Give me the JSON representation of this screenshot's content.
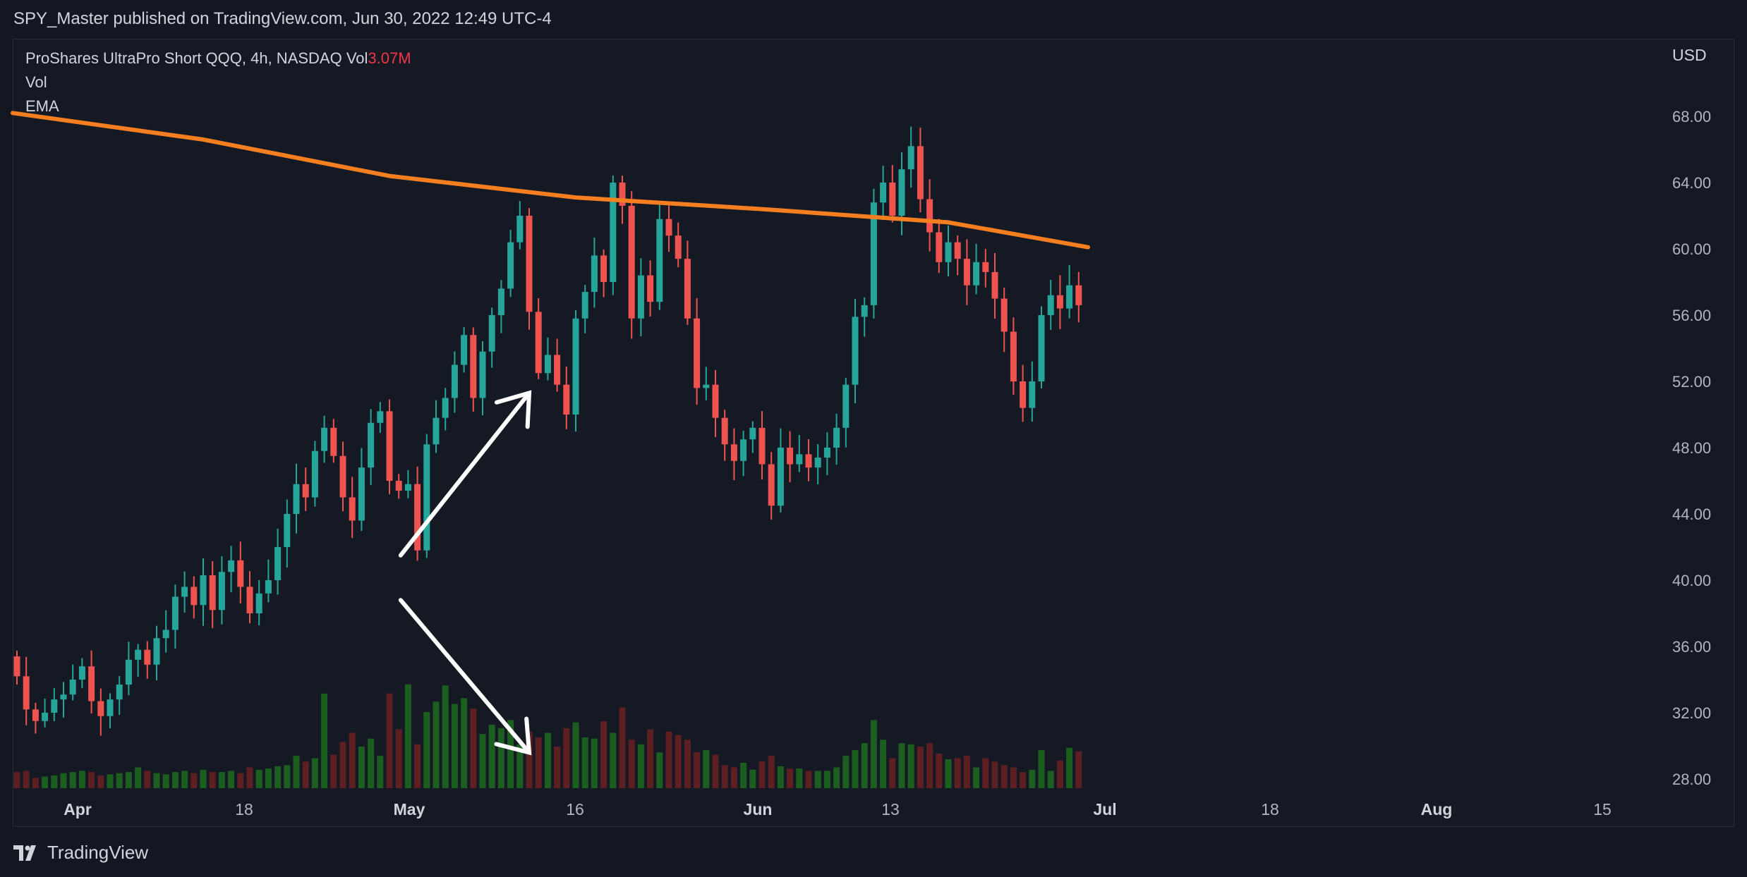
{
  "header": {
    "text": "SPY_Master published on TradingView.com, Jun 30, 2022 12:49 UTC-4"
  },
  "legend": {
    "symbol_line": "ProShares UltraPro Short QQQ, 4h, NASDAQ  Vol",
    "vol_value": "3.07M",
    "vol_label": "Vol",
    "ema_label": "EMA"
  },
  "currency": "USD",
  "footer": {
    "brand": "TradingView"
  },
  "colors": {
    "up": "#26a69a",
    "down": "#ef5350",
    "ema": "#f57f20",
    "vol_up": "#1b5e20",
    "vol_down": "#5d1f22",
    "annotation": "#ffffff"
  },
  "chart_data": {
    "type": "candlestick",
    "ylim": [
      27,
      70
    ],
    "y_ticks": [
      "28.00",
      "32.00",
      "36.00",
      "40.00",
      "44.00",
      "48.00",
      "52.00",
      "56.00",
      "60.00",
      "64.00",
      "68.00"
    ],
    "x_ticks": [
      {
        "label": "Apr",
        "major": true
      },
      {
        "label": "18",
        "major": false
      },
      {
        "label": "May",
        "major": true
      },
      {
        "label": "16",
        "major": false
      },
      {
        "label": "Jun",
        "major": true
      },
      {
        "label": "13",
        "major": false
      },
      {
        "label": "Jul",
        "major": true
      },
      {
        "label": "18",
        "major": false
      },
      {
        "label": "Aug",
        "major": true
      },
      {
        "label": "15",
        "major": false
      }
    ],
    "candle_closes": [
      34.2,
      32.2,
      31.5,
      32.0,
      32.8,
      33.1,
      34.0,
      34.8,
      32.7,
      31.8,
      32.8,
      33.7,
      35.2,
      35.8,
      34.9,
      36.5,
      37.0,
      39.0,
      39.6,
      38.5,
      40.3,
      38.2,
      40.5,
      41.2,
      39.6,
      38.0,
      39.2,
      40.0,
      42.0,
      44.0,
      45.8,
      45.0,
      47.8,
      49.2,
      47.5,
      45.0,
      43.6,
      46.8,
      49.5,
      50.2,
      46.0,
      45.4,
      45.8,
      41.8,
      48.2,
      49.8,
      51.0,
      53.0,
      54.8,
      51.0,
      53.8,
      56.0,
      57.6,
      60.4,
      62.0,
      56.2,
      52.5,
      53.6,
      51.8,
      50.0,
      55.8,
      57.4,
      59.6,
      58.0,
      64.0,
      62.6,
      55.8,
      58.4,
      56.8,
      61.8,
      60.8,
      59.4,
      55.8,
      51.6,
      51.8,
      49.8,
      48.2,
      47.2,
      48.5,
      49.2,
      47.0,
      44.5,
      48.0,
      47.0,
      47.6,
      46.8,
      47.4,
      48.0,
      49.2,
      51.8,
      55.9,
      56.6,
      62.8,
      64.0,
      62.0,
      64.8,
      66.2,
      63.0,
      61.0,
      59.2,
      60.4,
      59.4,
      57.8,
      59.2,
      58.6,
      57.0,
      55.0,
      52.0,
      50.4,
      52.0,
      56.0,
      57.2,
      56.4,
      57.8,
      56.6
    ],
    "ema": [
      [
        0,
        68.2
      ],
      [
        20,
        66.6
      ],
      [
        40,
        64.4
      ],
      [
        60,
        63.1
      ],
      [
        80,
        62.4
      ],
      [
        100,
        61.6
      ],
      [
        115,
        60.1
      ]
    ],
    "volume": [
      14,
      15,
      9,
      10,
      11,
      13,
      14,
      15,
      14,
      11,
      12,
      13,
      14,
      18,
      15,
      13,
      12,
      14,
      15,
      13,
      16,
      14,
      14,
      15,
      13,
      18,
      16,
      17,
      19,
      20,
      28,
      23,
      26,
      82,
      29,
      40,
      48,
      36,
      43,
      28,
      82,
      51,
      90,
      38,
      66,
      75,
      89,
      73,
      78,
      69,
      47,
      55,
      52,
      59,
      38,
      49,
      44,
      48,
      36,
      52,
      57,
      44,
      43,
      58,
      48,
      70,
      42,
      38,
      51,
      31,
      49,
      46,
      42,
      31,
      33,
      29,
      20,
      18,
      22,
      16,
      23,
      28,
      19,
      17,
      17,
      15,
      15,
      15,
      18,
      28,
      33,
      39,
      59,
      42,
      26,
      39,
      38,
      36,
      39,
      30,
      25,
      26,
      28,
      18,
      26,
      23,
      20,
      18,
      14,
      16,
      33,
      15,
      24,
      35,
      32
    ],
    "vol_ylim": [
      0,
      165
    ]
  },
  "annotations": [
    {
      "kind": "arrow",
      "from": [
        41.2,
        41.5
      ],
      "to": [
        55.0,
        51.3
      ]
    },
    {
      "kind": "arrow",
      "from": [
        41.2,
        38.8
      ],
      "to": [
        55.0,
        29.6
      ]
    }
  ]
}
